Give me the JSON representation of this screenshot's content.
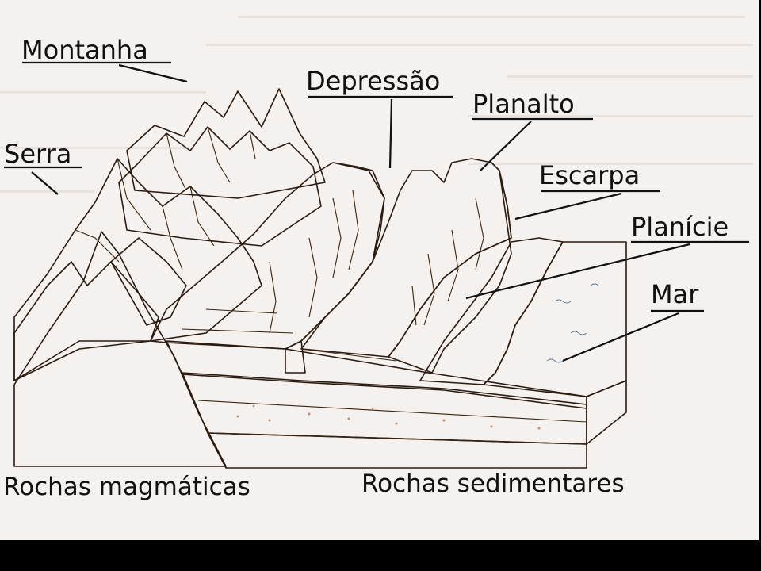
{
  "diagram": {
    "labels": {
      "montanha": "Montanha",
      "serra": "Serra",
      "depressao": "Depressão",
      "planalto": "Planalto",
      "escarpa": "Escarpa",
      "planicie": "Planície",
      "mar": "Mar",
      "rochas_magmaticas": "Rochas magmáticas",
      "rochas_sedimentares": "Rochas sedimentares"
    },
    "colors": {
      "page": "#f4f1ee",
      "mountain_light": "#e8f0c8",
      "mountain_green": "#7cc63a",
      "mountain_dark_green": "#3f9b2a",
      "magmatic_rock": "#5e5a45",
      "plateau_orange": "#f0a03a",
      "plateau_dark": "#d9752a",
      "red_layer": "#ee3a1e",
      "plain_yellow": "#f7e55a",
      "sea": "#dce6ef",
      "sea_side": "#b8cfe3"
    }
  }
}
